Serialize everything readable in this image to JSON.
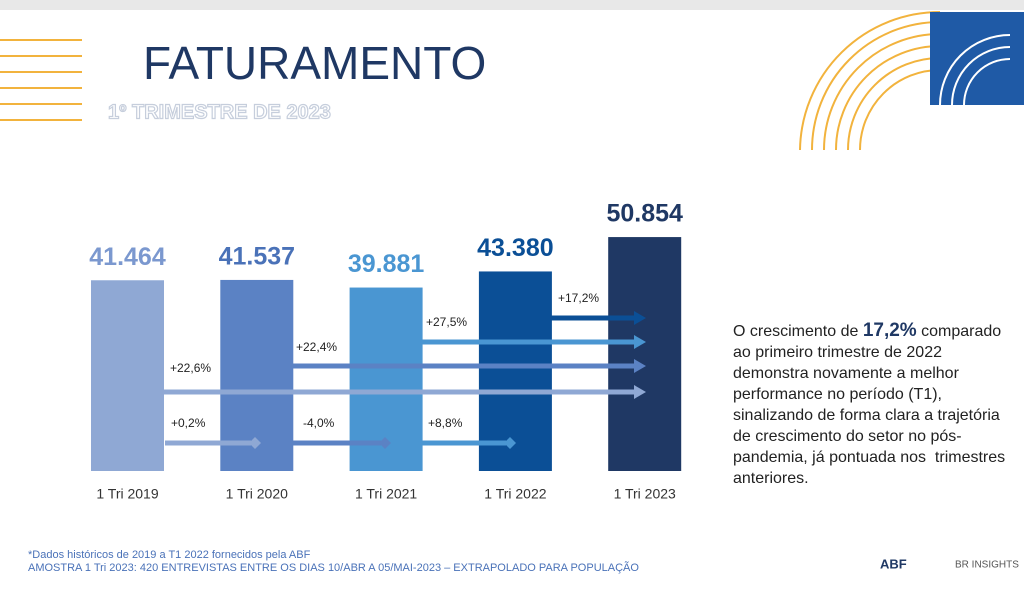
{
  "header": {
    "title": "FATURAMENTO",
    "subtitle": "1º TRIMESTRE DE 2023"
  },
  "chart_data": {
    "type": "bar",
    "categories": [
      "1 Tri 2019",
      "1 Tri 2020",
      "1 Tri 2021",
      "1 Tri 2022",
      "1 Tri 2023"
    ],
    "values": [
      41464,
      41537,
      39881,
      43380,
      50854
    ],
    "value_labels": [
      "41.464",
      "41.537",
      "39.881",
      "43.380",
      "50.854"
    ],
    "colors": [
      "#8fa8d4",
      "#5b82c4",
      "#4a96d2",
      "#0b4f96",
      "#1f3864"
    ],
    "label_colors": [
      "#7b98cf",
      "#4a72b8",
      "#4a96d2",
      "#0b4f96",
      "#1f3864"
    ],
    "annotations": [
      {
        "label": "+17,2%",
        "color": "#0b4f96"
      },
      {
        "label": "+27,5%",
        "color": "#4a96d2"
      },
      {
        "label": "+22,4%",
        "color": "#5b82c4"
      },
      {
        "label": "+22,6%",
        "color": "#8fa8d4"
      },
      {
        "label": "+0,2%",
        "color": "#8fa8d4"
      },
      {
        "label": "-4,0%",
        "color": "#5b82c4"
      },
      {
        "label": "+8,8%",
        "color": "#4a96d2"
      }
    ]
  },
  "commentary": {
    "before": "O crescimento de ",
    "highlight": "17,2%",
    "after": " comparado ao primeiro trimestre de 2022 demonstra novamente a melhor performance no período (T1), sinalizando de forma clara a trajetória de crescimento do setor no pós-pandemia, já pontuada nos  trimestres anteriores."
  },
  "footnotes": [
    "*Dados históricos de 2019 a T1 2022 fornecidos pela ABF",
    "AMOSTRA 1 Tri 2023: 420 ENTREVISTAS ENTRE OS DIAS 10/ABR A 05/MAI-2023 – EXTRAPOLADO PARA POPULAÇÃO"
  ],
  "logos": [
    "ABF",
    "BR INSIGHTS"
  ]
}
